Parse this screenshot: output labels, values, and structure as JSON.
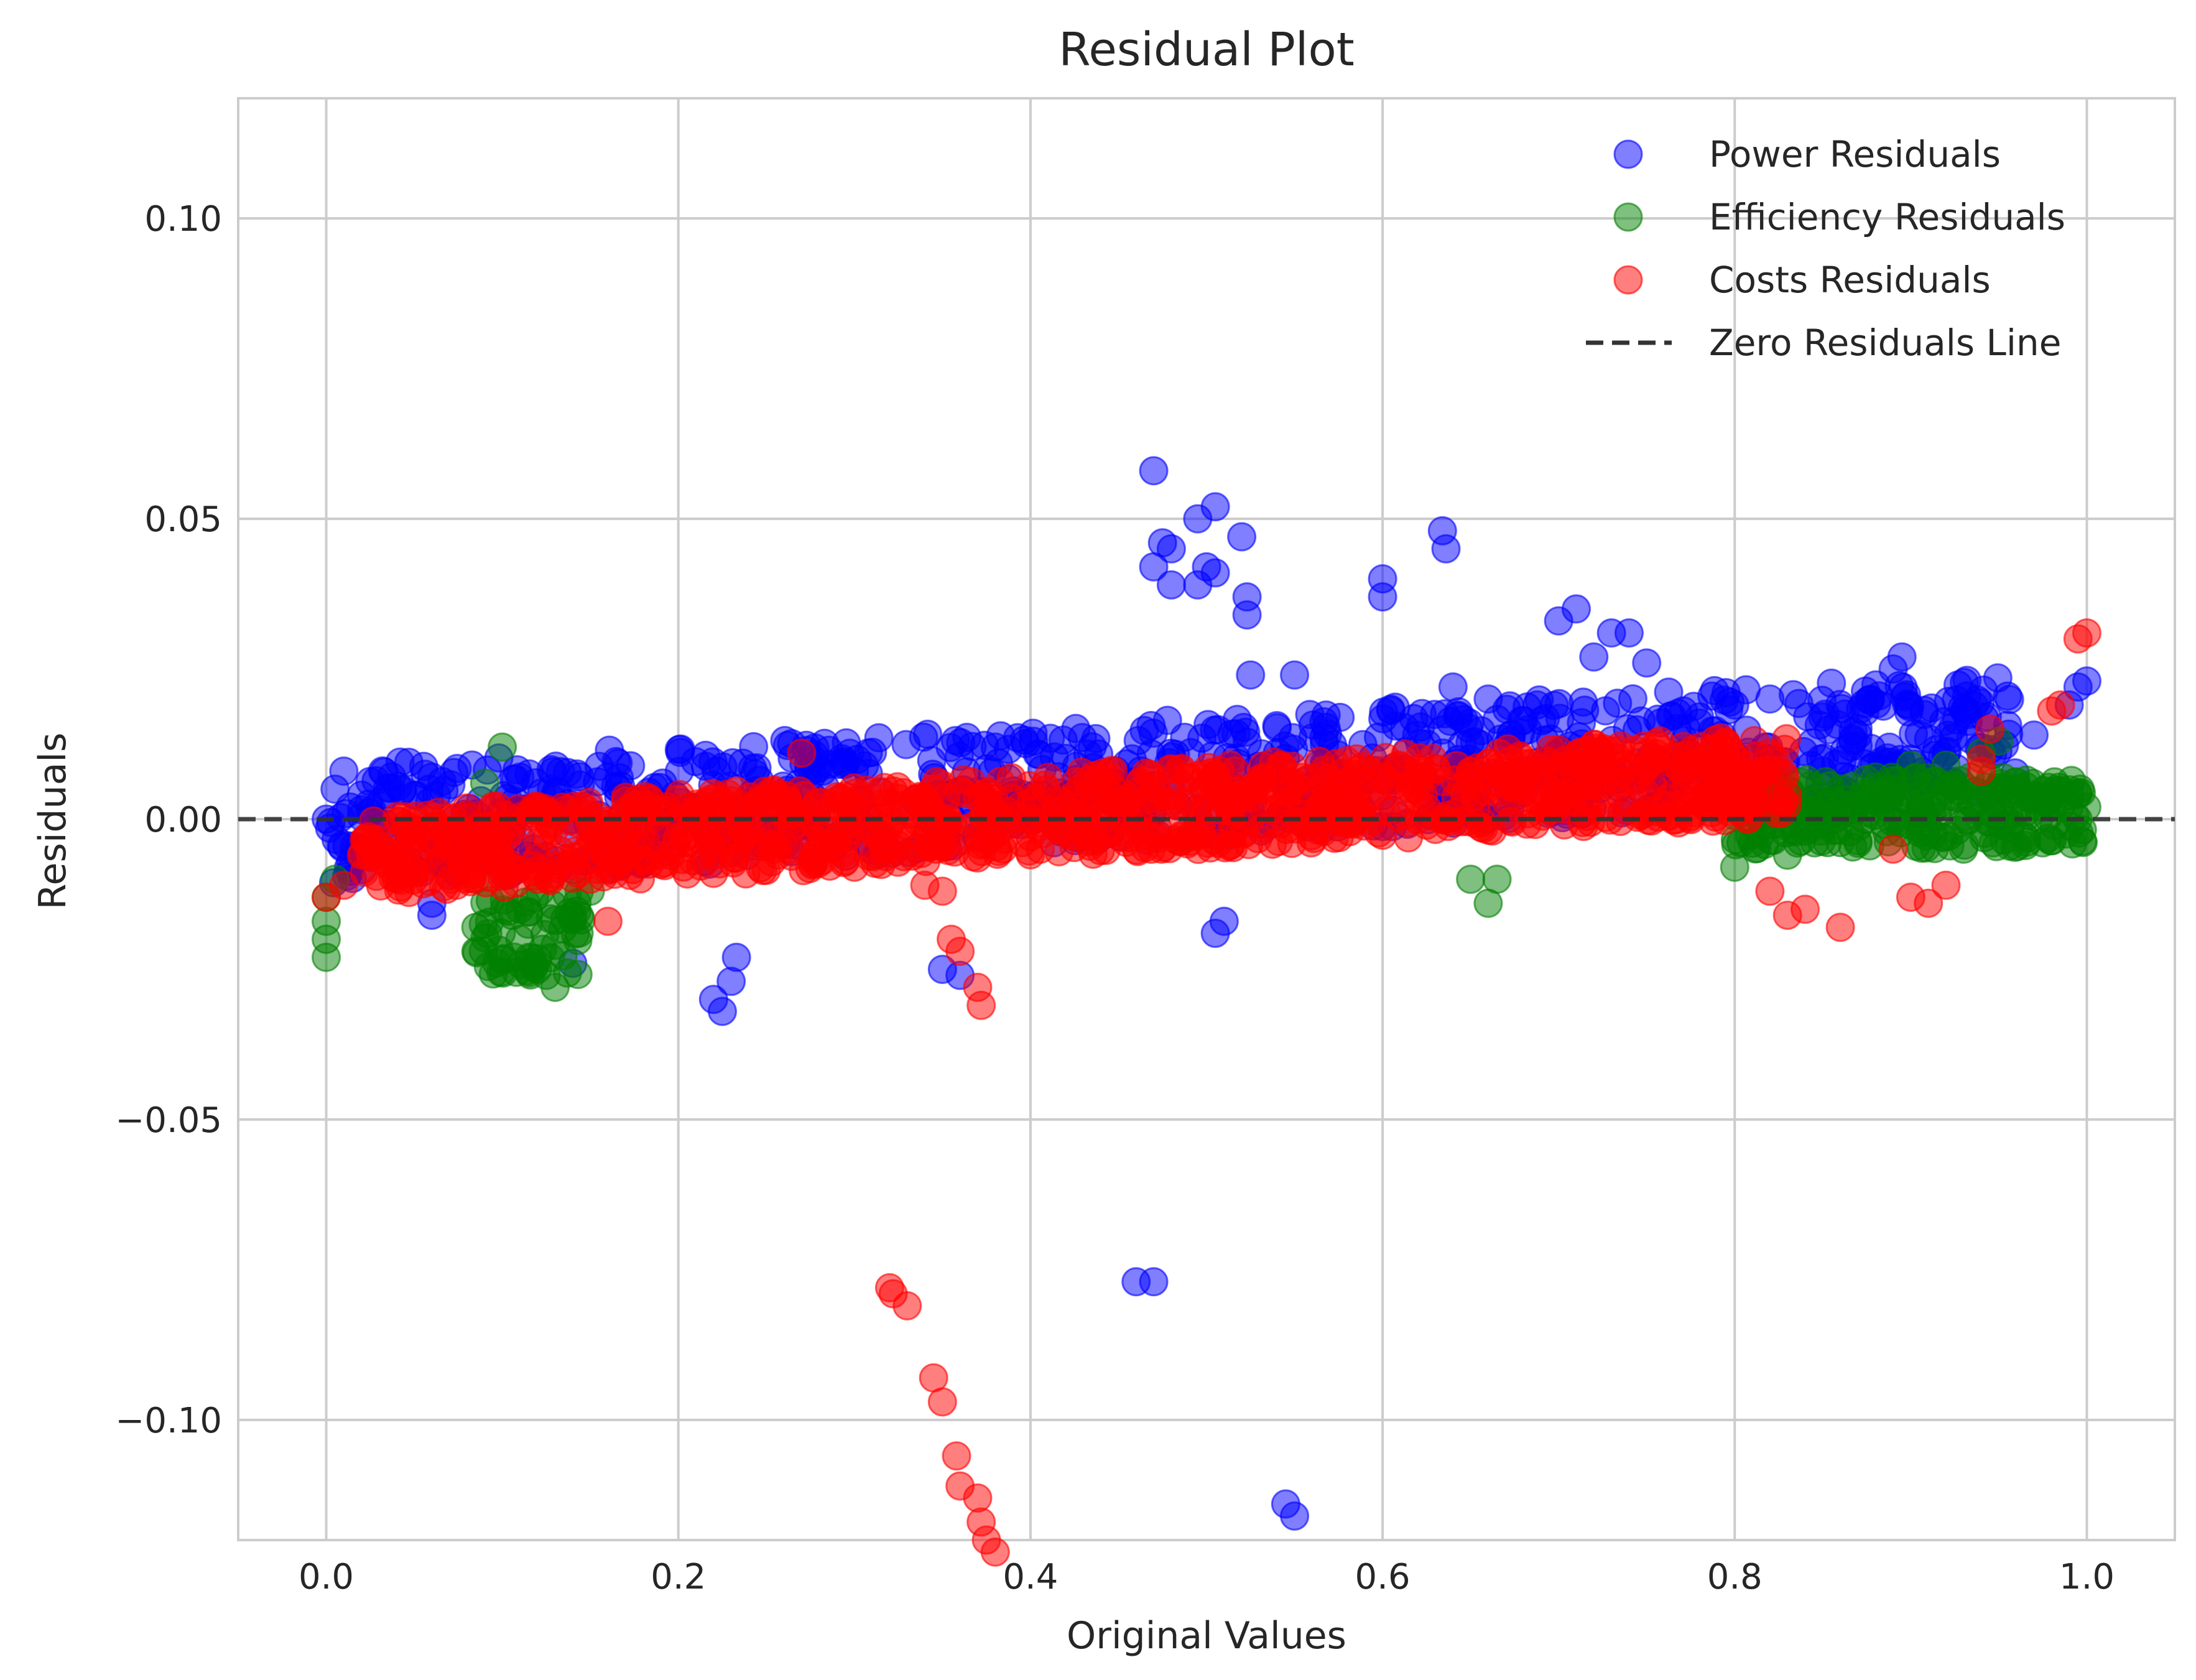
{
  "chart_data": {
    "type": "scatter",
    "title": "Residual Plot",
    "xlabel": "Original Values",
    "ylabel": "Residuals",
    "xlim": [
      -0.05,
      1.05
    ],
    "ylim": [
      -0.12,
      0.12
    ],
    "xticks": [
      0.0,
      0.2,
      0.4,
      0.6,
      0.8,
      1.0
    ],
    "xtick_labels": [
      "0.0",
      "0.2",
      "0.4",
      "0.6",
      "0.8",
      "1.0"
    ],
    "yticks": [
      0.1,
      0.05,
      0.0,
      -0.05,
      -0.1
    ],
    "ytick_labels": [
      "0.10",
      "0.05",
      "0.00",
      "−0.05",
      "−0.10"
    ],
    "grid": true,
    "legend_position": "top-right",
    "series": [
      {
        "name": "Power Residuals",
        "color": "#0000ff",
        "points": [
          [
            0.0,
            0.0
          ],
          [
            0.005,
            0.005
          ],
          [
            0.01,
            0.008
          ],
          [
            0.02,
            0.004
          ],
          [
            0.05,
            0.004
          ],
          [
            0.06,
            0.007
          ],
          [
            0.06,
            -0.014
          ],
          [
            0.06,
            -0.016
          ],
          [
            0.11,
            0.007
          ],
          [
            0.14,
            -0.024
          ],
          [
            0.16,
            0.007
          ],
          [
            0.22,
            -0.03
          ],
          [
            0.225,
            -0.032
          ],
          [
            0.23,
            -0.027
          ],
          [
            0.233,
            -0.023
          ],
          [
            0.3,
            0.008
          ],
          [
            0.35,
            -0.025
          ],
          [
            0.36,
            -0.026
          ],
          [
            0.38,
            0.012
          ],
          [
            0.46,
            -0.077
          ],
          [
            0.47,
            -0.077
          ],
          [
            0.47,
            0.058
          ],
          [
            0.475,
            0.046
          ],
          [
            0.47,
            0.042
          ],
          [
            0.48,
            0.045
          ],
          [
            0.48,
            0.039
          ],
          [
            0.495,
            0.05
          ],
          [
            0.495,
            0.039
          ],
          [
            0.5,
            0.042
          ],
          [
            0.505,
            0.052
          ],
          [
            0.505,
            0.041
          ],
          [
            0.505,
            -0.019
          ],
          [
            0.51,
            -0.017
          ],
          [
            0.52,
            0.047
          ],
          [
            0.523,
            0.037
          ],
          [
            0.523,
            0.034
          ],
          [
            0.525,
            0.024
          ],
          [
            0.55,
            0.024
          ],
          [
            0.545,
            -0.114
          ],
          [
            0.55,
            -0.116
          ],
          [
            0.6,
            0.04
          ],
          [
            0.6,
            0.037
          ],
          [
            0.634,
            0.048
          ],
          [
            0.636,
            0.045
          ],
          [
            0.64,
            0.022
          ],
          [
            0.66,
            0.02
          ],
          [
            0.7,
            0.033
          ],
          [
            0.71,
            0.035
          ],
          [
            0.72,
            0.027
          ],
          [
            0.73,
            0.031
          ],
          [
            0.74,
            0.031
          ],
          [
            0.75,
            0.026
          ],
          [
            0.78,
            0.016
          ],
          [
            0.8,
            0.019
          ],
          [
            0.82,
            0.02
          ],
          [
            0.85,
            0.017
          ],
          [
            0.87,
            0.014
          ],
          [
            0.89,
            0.025
          ],
          [
            0.895,
            0.027
          ],
          [
            0.9,
            0.01
          ],
          [
            0.92,
            0.011
          ],
          [
            0.94,
            0.012
          ],
          [
            0.97,
            0.014
          ],
          [
            0.99,
            0.019
          ],
          [
            0.995,
            0.022
          ],
          [
            1.0,
            0.023
          ]
        ]
      },
      {
        "name": "Efficiency Residuals",
        "color": "#008000",
        "points": [
          [
            0.0,
            -0.013
          ],
          [
            0.0,
            -0.017
          ],
          [
            0.0,
            -0.02
          ],
          [
            0.0,
            -0.023
          ],
          [
            0.005,
            -0.01
          ],
          [
            0.085,
            -0.01
          ],
          [
            0.085,
            -0.018
          ],
          [
            0.085,
            -0.022
          ],
          [
            0.09,
            0.006
          ],
          [
            0.1,
            0.012
          ],
          [
            0.11,
            -0.015
          ],
          [
            0.11,
            -0.02
          ],
          [
            0.115,
            -0.023
          ],
          [
            0.12,
            -0.025
          ],
          [
            0.125,
            -0.026
          ],
          [
            0.13,
            -0.028
          ],
          [
            0.13,
            -0.021
          ],
          [
            0.14,
            -0.016
          ],
          [
            0.15,
            -0.012
          ],
          [
            0.65,
            -0.01
          ],
          [
            0.66,
            -0.014
          ],
          [
            0.665,
            -0.01
          ],
          [
            0.8,
            -0.008
          ],
          [
            0.81,
            -0.004
          ],
          [
            0.82,
            0.001
          ],
          [
            0.84,
            -0.002
          ],
          [
            0.85,
            0.003
          ],
          [
            0.86,
            0.005
          ],
          [
            0.88,
            0.007
          ],
          [
            0.9,
            0.009
          ],
          [
            0.92,
            0.009
          ],
          [
            0.94,
            0.011
          ],
          [
            0.95,
            0.013
          ],
          [
            0.96,
            0.005
          ],
          [
            0.97,
            0.004
          ],
          [
            0.98,
            0.002
          ],
          [
            0.99,
            0.002
          ],
          [
            1.0,
            0.002
          ],
          [
            0.995,
            0.0
          ],
          [
            0.93,
            -0.005
          ],
          [
            0.87,
            -0.004
          ],
          [
            0.83,
            -0.006
          ]
        ]
      },
      {
        "name": "Costs Residuals",
        "color": "#ff0000",
        "points": [
          [
            0.0,
            -0.013
          ],
          [
            0.01,
            -0.011
          ],
          [
            0.02,
            -0.006
          ],
          [
            0.05,
            -0.002
          ],
          [
            0.06,
            -0.004
          ],
          [
            0.1,
            -0.007
          ],
          [
            0.12,
            -0.01
          ],
          [
            0.15,
            -0.01
          ],
          [
            0.16,
            -0.017
          ],
          [
            0.22,
            -0.006
          ],
          [
            0.25,
            -0.004
          ],
          [
            0.27,
            0.011
          ],
          [
            0.3,
            -0.008
          ],
          [
            0.32,
            -0.078
          ],
          [
            0.322,
            -0.079
          ],
          [
            0.33,
            -0.081
          ],
          [
            0.345,
            -0.093
          ],
          [
            0.35,
            -0.097
          ],
          [
            0.358,
            -0.106
          ],
          [
            0.36,
            -0.111
          ],
          [
            0.37,
            -0.113
          ],
          [
            0.372,
            -0.117
          ],
          [
            0.375,
            -0.12
          ],
          [
            0.38,
            -0.122
          ],
          [
            0.355,
            -0.02
          ],
          [
            0.36,
            -0.022
          ],
          [
            0.37,
            -0.028
          ],
          [
            0.372,
            -0.031
          ],
          [
            0.35,
            -0.012
          ],
          [
            0.34,
            -0.011
          ],
          [
            0.4,
            0.0
          ],
          [
            0.42,
            0.002
          ],
          [
            0.45,
            0.003
          ],
          [
            0.48,
            0.003
          ],
          [
            0.5,
            0.004
          ],
          [
            0.52,
            0.005
          ],
          [
            0.55,
            0.006
          ],
          [
            0.58,
            0.006
          ],
          [
            0.6,
            0.007
          ],
          [
            0.62,
            0.007
          ],
          [
            0.65,
            0.008
          ],
          [
            0.68,
            0.008
          ],
          [
            0.7,
            0.008
          ],
          [
            0.72,
            0.009
          ],
          [
            0.75,
            0.009
          ],
          [
            0.78,
            0.01
          ],
          [
            0.8,
            0.01
          ],
          [
            0.82,
            0.011
          ],
          [
            0.83,
            0.004
          ],
          [
            0.82,
            -0.012
          ],
          [
            0.83,
            -0.016
          ],
          [
            0.84,
            -0.015
          ],
          [
            0.86,
            -0.018
          ],
          [
            0.89,
            -0.005
          ],
          [
            0.9,
            -0.013
          ],
          [
            0.91,
            -0.014
          ],
          [
            0.92,
            -0.011
          ],
          [
            0.94,
            0.01
          ],
          [
            0.945,
            0.015
          ],
          [
            0.94,
            0.008
          ],
          [
            0.98,
            0.018
          ],
          [
            0.985,
            0.019
          ],
          [
            0.995,
            0.03
          ],
          [
            1.0,
            0.031
          ]
        ]
      }
    ],
    "reference_line": {
      "name": "Zero Residuals Line",
      "y": 0.0,
      "color": "#333333"
    }
  }
}
